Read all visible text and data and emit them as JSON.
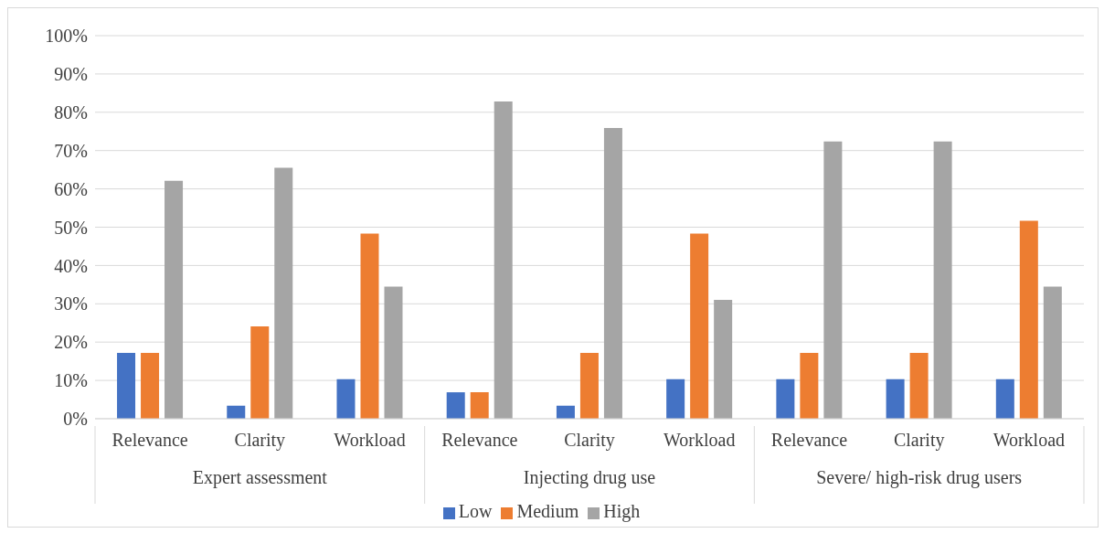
{
  "chart_data": {
    "type": "bar",
    "categories": [
      "Relevance",
      "Clarity",
      "Workload",
      "Relevance",
      "Clarity",
      "Workload",
      "Relevance",
      "Clarity",
      "Workload"
    ],
    "annotations": [
      "Expert assessment",
      "Injecting drug use",
      "Severe/ high-risk drug users"
    ],
    "series": [
      {
        "name": "Low",
        "color": "#4472c4",
        "values": [
          17.2,
          3.4,
          10.3,
          6.9,
          3.4,
          10.3,
          10.3,
          10.3,
          10.3
        ]
      },
      {
        "name": "Medium",
        "color": "#ed7d31",
        "values": [
          17.2,
          24.1,
          48.3,
          6.9,
          17.2,
          48.3,
          17.2,
          17.2,
          51.7
        ]
      },
      {
        "name": "High",
        "color": "#a5a5a5",
        "values": [
          62.1,
          65.5,
          34.5,
          82.8,
          75.9,
          31.0,
          72.4,
          72.4,
          34.5
        ]
      }
    ],
    "ylim": [
      0,
      100
    ],
    "yticks": [
      {
        "value": 0,
        "label": "0%"
      },
      {
        "value": 10,
        "label": "10%"
      },
      {
        "value": 20,
        "label": "20%"
      },
      {
        "value": 30,
        "label": "30%"
      },
      {
        "value": 40,
        "label": "40%"
      },
      {
        "value": 50,
        "label": "50%"
      },
      {
        "value": 60,
        "label": "60%"
      },
      {
        "value": 70,
        "label": "70%"
      },
      {
        "value": 80,
        "label": "80%"
      },
      {
        "value": 90,
        "label": "90%"
      },
      {
        "value": 100,
        "label": "100%"
      }
    ],
    "grid": "y",
    "legend": "bottom"
  }
}
